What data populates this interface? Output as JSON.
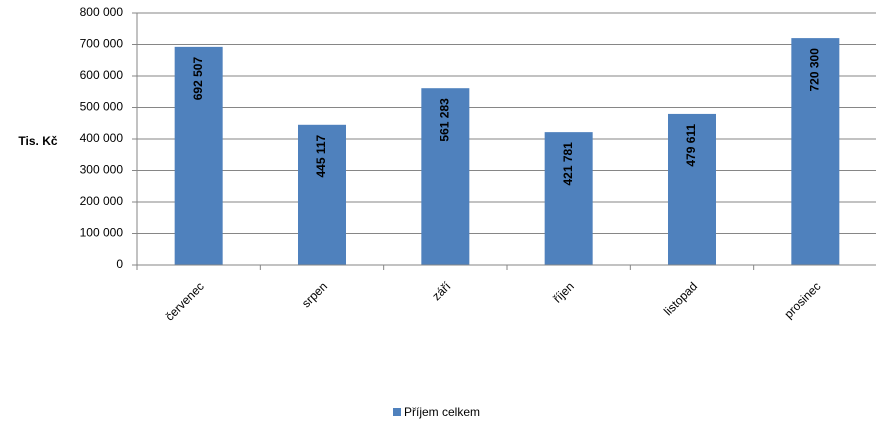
{
  "chart_data": {
    "type": "bar",
    "title": "",
    "xlabel": "",
    "ylabel": "Tis. Kč",
    "categories": [
      "červenec",
      "srpen",
      "září",
      "říjen",
      "listopad",
      "prosinec"
    ],
    "series": [
      {
        "name": "Příjem celkem",
        "values": [
          692507,
          445117,
          561283,
          421781,
          479611,
          720300
        ],
        "data_labels": [
          "692 507",
          "445 117",
          "561 283",
          "421 781",
          "479 611",
          "720 300"
        ],
        "color": "#4f81bd"
      }
    ],
    "ylim": [
      0,
      800000
    ],
    "yticks": [
      0,
      100000,
      200000,
      300000,
      400000,
      500000,
      600000,
      700000,
      800000
    ],
    "ytick_labels": [
      "0",
      "100 000",
      "200 000",
      "300 000",
      "400 000",
      "500 000",
      "600 000",
      "700 000",
      "800 000"
    ],
    "grid": true,
    "legend_position": "bottom"
  }
}
